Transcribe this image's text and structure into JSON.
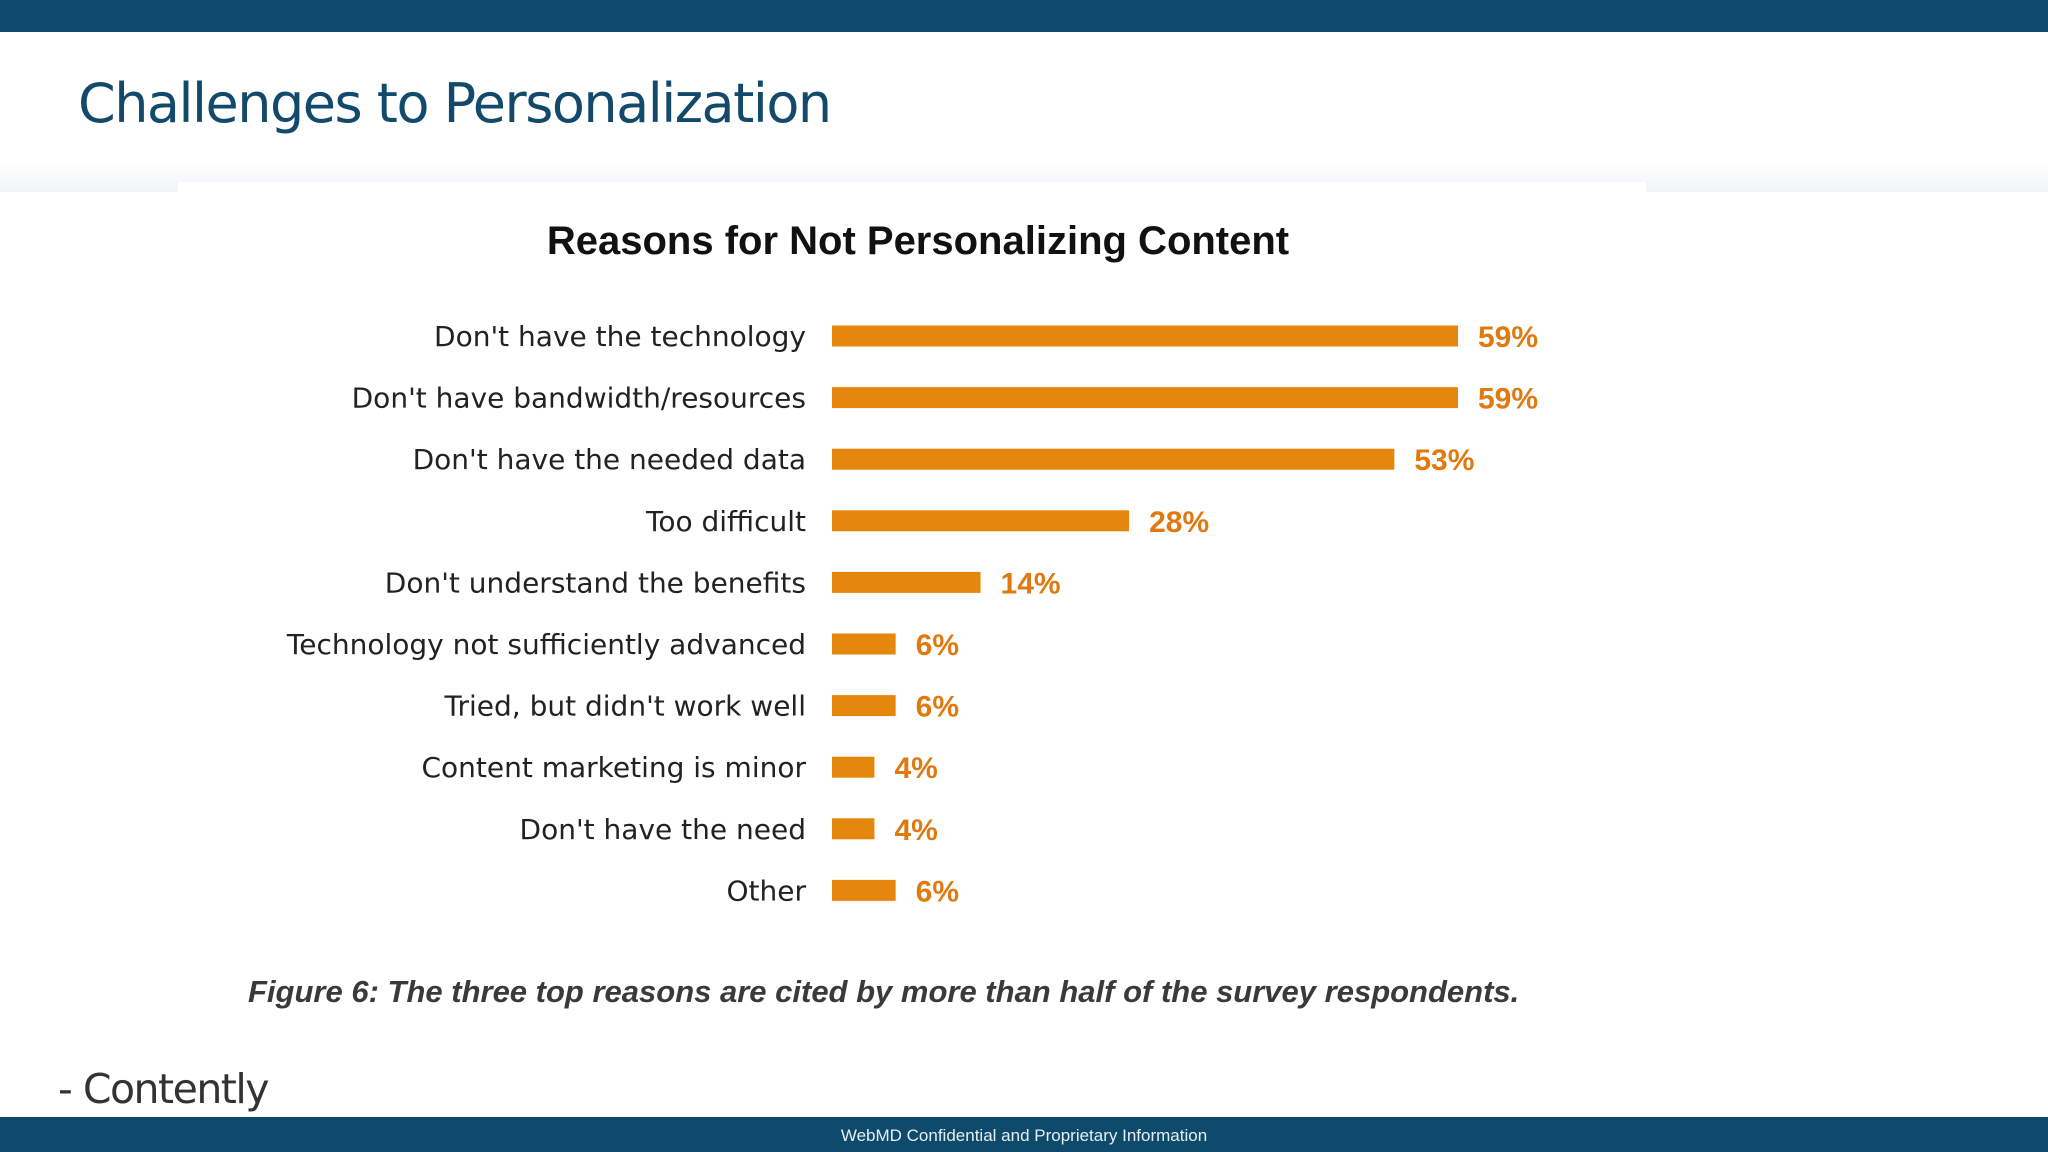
{
  "slide": {
    "title": "Challenges to Personalization",
    "source": "- Contently",
    "footer": "WebMD Confidential and Proprietary Information"
  },
  "colors": {
    "bar": "#e5870d",
    "value_label": "#e07a10",
    "category_label": "#222222",
    "title": "#111111",
    "brand_bar": "#0d4a6b"
  },
  "chart_data": {
    "type": "bar",
    "orientation": "horizontal",
    "title": "Reasons for Not Personalizing Content",
    "caption": "Figure 6: The three top reasons are cited by more than half of the survey respondents.",
    "categories": [
      "Don't have the technology",
      "Don't have bandwidth/resources",
      "Don't have the needed data",
      "Too difficult",
      "Don't understand the benefits",
      "Technology not sufficiently advanced",
      "Tried, but didn't work well",
      "Content marketing is minor",
      "Don't have the need",
      "Other"
    ],
    "values": [
      59,
      59,
      53,
      28,
      14,
      6,
      6,
      4,
      4,
      6
    ],
    "value_labels": [
      "59%",
      "59%",
      "53%",
      "28%",
      "14%",
      "6%",
      "6%",
      "4%",
      "4%",
      "6%"
    ],
    "xlabel": "",
    "ylabel": "",
    "xlim": [
      0,
      59
    ],
    "grid": false,
    "legend": "none"
  }
}
